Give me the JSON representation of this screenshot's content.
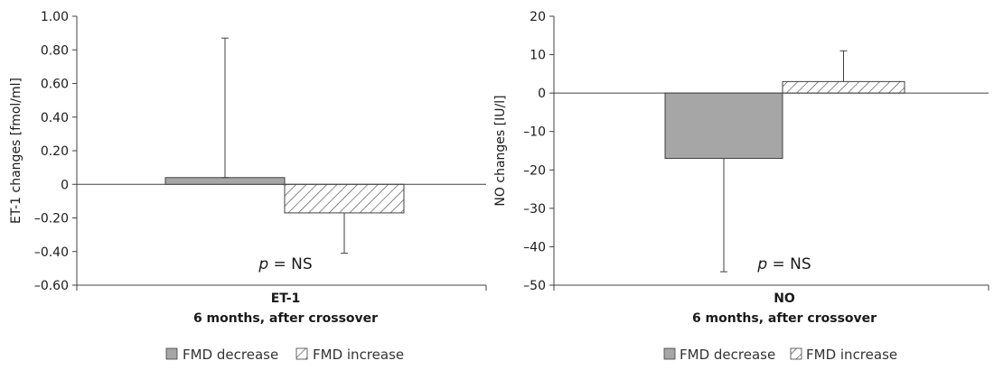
{
  "chart_data": [
    {
      "type": "bar",
      "xlabel": "ET-1",
      "xsublabel": "6 months, after crossover",
      "ylabel": "ET-1 changes [fmol/ml]",
      "ylim": [
        -0.6,
        1.0
      ],
      "yticks": [
        -0.6,
        -0.4,
        -0.2,
        0,
        0.2,
        0.4,
        0.6,
        0.8,
        1.0
      ],
      "ytick_labels": [
        "–0.60",
        "–0.40",
        "–0.20",
        "0",
        "0.20",
        "0.40",
        "0.60",
        "0.80",
        "1.00"
      ],
      "series": [
        {
          "name": "FMD decrease",
          "value": 0.04,
          "error_end": 0.87,
          "pattern": "solid-grey"
        },
        {
          "name": "FMD increase",
          "value": -0.17,
          "error_end": -0.41,
          "pattern": "hatched"
        }
      ],
      "annotation": {
        "italic": "p",
        "text": " = NS"
      },
      "legend_position": "bottom-center"
    },
    {
      "type": "bar",
      "xlabel": "NO",
      "xsublabel": "6 months, after crossover",
      "ylabel": "NO changes [IU/l]",
      "ylim": [
        -50,
        20
      ],
      "yticks": [
        -50,
        -40,
        -30,
        -20,
        -10,
        0,
        10,
        20
      ],
      "ytick_labels": [
        "–50",
        "–40",
        "–30",
        "–20",
        "–10",
        "0",
        "10",
        "20"
      ],
      "series": [
        {
          "name": "FMD decrease",
          "value": -17,
          "error_end": -46.5,
          "pattern": "solid-grey"
        },
        {
          "name": "FMD increase",
          "value": 3,
          "error_end": 11,
          "pattern": "hatched"
        }
      ],
      "annotation": {
        "italic": "p",
        "text": " = NS"
      },
      "legend_position": "bottom-center"
    }
  ],
  "colors": {
    "bar_fill": "#a6a6a6",
    "bar_stroke": "#404040",
    "axis": "#404040"
  }
}
